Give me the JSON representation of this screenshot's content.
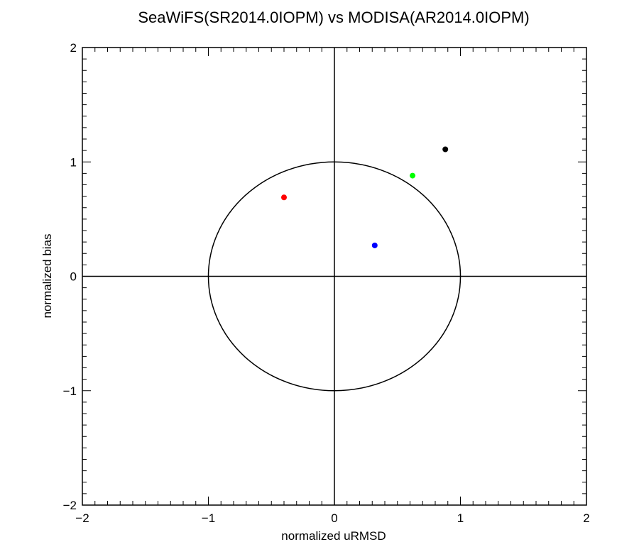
{
  "chart_data": {
    "type": "scatter",
    "title": "SeaWiFS(SR2014.0IOPM) vs MODISA(AR2014.0IOPM)",
    "xlabel": "normalized uRMSD",
    "ylabel": "normalized bias",
    "xlim": [
      -2,
      2
    ],
    "ylim": [
      -2,
      2
    ],
    "x_ticks": [
      -2,
      -1,
      0,
      1,
      2
    ],
    "y_ticks": [
      -2,
      -1,
      0,
      1,
      2
    ],
    "x_tick_labels": [
      "−2",
      "−1",
      "0",
      "1",
      "2"
    ],
    "y_tick_labels": [
      "−2",
      "−1",
      "0",
      "1",
      "2"
    ],
    "grid": false,
    "reference_circle_radius": 1,
    "zero_lines": true,
    "points": [
      {
        "x": -0.4,
        "y": 0.69,
        "color": "#ff0000"
      },
      {
        "x": 0.32,
        "y": 0.27,
        "color": "#0000ff"
      },
      {
        "x": 0.62,
        "y": 0.88,
        "color": "#00ff00"
      },
      {
        "x": 0.88,
        "y": 1.11,
        "color": "#000000"
      }
    ]
  }
}
